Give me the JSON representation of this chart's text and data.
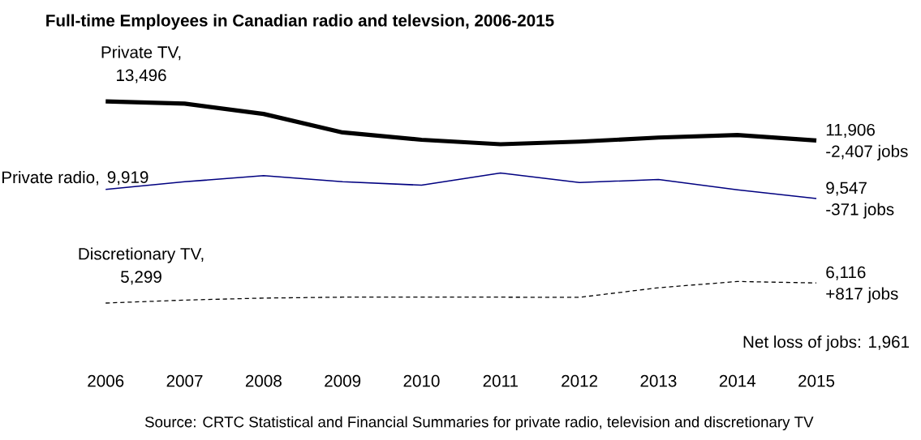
{
  "chart_data": {
    "type": "line",
    "title": "Full-time Employees in Canadian radio and televsion, 2006-2015",
    "categories": [
      "2006",
      "2007",
      "2008",
      "2009",
      "2010",
      "2011",
      "2012",
      "2013",
      "2014",
      "2015"
    ],
    "series": [
      {
        "name": "Private TV,",
        "color": "#000000",
        "line_style": "solid",
        "values": [
          13496,
          13406,
          12986,
          12236,
          11936,
          11756,
          11861,
          12026,
          12131,
          11906
        ],
        "value_labels": [
          "13,496",
          null,
          null,
          null,
          null,
          null,
          null,
          null,
          null,
          "11,906"
        ]
      },
      {
        "name": "Private radio,",
        "color": "#000080",
        "line_style": "solid",
        "values": [
          9919,
          10229,
          10477,
          10229,
          10090,
          10586,
          10198,
          10322,
          9904,
          9547
        ],
        "value_labels": [
          "9,919",
          null,
          null,
          null,
          null,
          null,
          null,
          null,
          null,
          "9,547"
        ]
      },
      {
        "name": "Discretionary TV,",
        "color": "#000000",
        "line_style": "dashed",
        "values": [
          5299,
          5419,
          5501,
          5539,
          5539,
          5539,
          5531,
          5921,
          6176,
          6116
        ],
        "value_labels": [
          "5,299",
          null,
          null,
          null,
          null,
          null,
          null,
          null,
          null,
          "6,116"
        ]
      }
    ],
    "annotations": [
      {
        "text": "-2,407 jobs",
        "x": "2015",
        "y": 11906
      },
      {
        "text": "-371 jobs",
        "x": "2015",
        "y": 9547
      },
      {
        "text": "+817 jobs",
        "x": "2015",
        "y": 6116
      },
      "Net loss of jobs:  1,961",
      "Source:  CRTC Statistical and Financial Summaries for private radio, television and discretionary TV"
    ],
    "tick_labels": "x"
  }
}
